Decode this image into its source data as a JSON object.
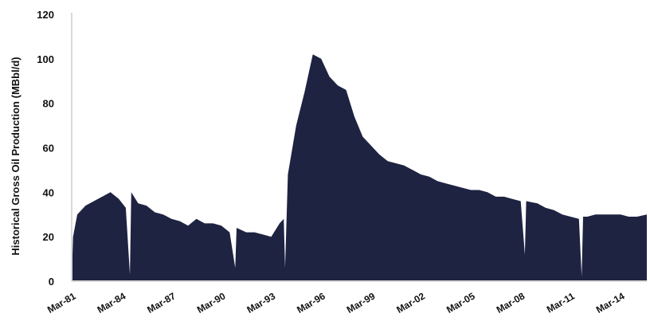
{
  "chart_data": {
    "type": "area",
    "title": "",
    "xlabel": "",
    "ylabel": "Historical Gross Oil Production (MBbl/d)",
    "ylim": [
      0,
      120
    ],
    "y_ticks": [
      "0",
      "20",
      "40",
      "60",
      "80",
      "100",
      "120"
    ],
    "x_tick_labels": [
      "Mar-81",
      "Mar-84",
      "Mar-87",
      "Mar-90",
      "Mar-93",
      "Mar-96",
      "Mar-99",
      "Mar-02",
      "Mar-05",
      "Mar-08",
      "Mar-11",
      "Mar-14"
    ],
    "x_range": [
      "Mar-81",
      "Oct-15"
    ],
    "grid": false,
    "fill_color": "#1f2342",
    "axis_color": "#d9d9d9",
    "series": [
      {
        "name": "",
        "points": [
          [
            "Mar-81",
            0
          ],
          [
            "Apr-81",
            20
          ],
          [
            "Jul-81",
            30
          ],
          [
            "Jan-82",
            34
          ],
          [
            "Jul-82",
            36
          ],
          [
            "Jan-83",
            38
          ],
          [
            "Jul-83",
            40
          ],
          [
            "Jan-84",
            37
          ],
          [
            "Jun-84",
            33
          ],
          [
            "Sep-84",
            3
          ],
          [
            "Oct-84",
            40
          ],
          [
            "Mar-85",
            35
          ],
          [
            "Sep-85",
            34
          ],
          [
            "Mar-86",
            31
          ],
          [
            "Sep-86",
            30
          ],
          [
            "Mar-87",
            28
          ],
          [
            "Sep-87",
            27
          ],
          [
            "Mar-88",
            25
          ],
          [
            "Sep-88",
            28
          ],
          [
            "Mar-89",
            26
          ],
          [
            "Sep-89",
            26
          ],
          [
            "Mar-90",
            25
          ],
          [
            "Sep-90",
            22
          ],
          [
            "Jan-91",
            6
          ],
          [
            "Feb-91",
            24
          ],
          [
            "Sep-91",
            22
          ],
          [
            "Mar-92",
            22
          ],
          [
            "Sep-92",
            21
          ],
          [
            "Mar-93",
            20
          ],
          [
            "Sep-93",
            26
          ],
          [
            "Dec-93",
            28
          ],
          [
            "Jan-94",
            6
          ],
          [
            "Mar-94",
            48
          ],
          [
            "Sep-94",
            70
          ],
          [
            "Mar-95",
            85
          ],
          [
            "Sep-95",
            102
          ],
          [
            "Mar-96",
            100
          ],
          [
            "Sep-96",
            92
          ],
          [
            "Mar-97",
            88
          ],
          [
            "Sep-97",
            86
          ],
          [
            "Mar-98",
            74
          ],
          [
            "Sep-98",
            65
          ],
          [
            "Mar-99",
            61
          ],
          [
            "Sep-99",
            57
          ],
          [
            "Mar-00",
            54
          ],
          [
            "Sep-00",
            53
          ],
          [
            "Mar-01",
            52
          ],
          [
            "Sep-01",
            50
          ],
          [
            "Mar-02",
            48
          ],
          [
            "Sep-02",
            47
          ],
          [
            "Mar-03",
            45
          ],
          [
            "Sep-03",
            44
          ],
          [
            "Mar-04",
            43
          ],
          [
            "Sep-04",
            42
          ],
          [
            "Mar-05",
            41
          ],
          [
            "Sep-05",
            41
          ],
          [
            "Mar-06",
            40
          ],
          [
            "Sep-06",
            38
          ],
          [
            "Mar-07",
            38
          ],
          [
            "Sep-07",
            37
          ],
          [
            "Mar-08",
            36
          ],
          [
            "Jun-08",
            12
          ],
          [
            "Jul-08",
            36
          ],
          [
            "Mar-09",
            35
          ],
          [
            "Sep-09",
            33
          ],
          [
            "Mar-10",
            32
          ],
          [
            "Sep-10",
            30
          ],
          [
            "Mar-11",
            29
          ],
          [
            "Sep-11",
            28
          ],
          [
            "Nov-11",
            2
          ],
          [
            "Dec-11",
            29
          ],
          [
            "Mar-12",
            29
          ],
          [
            "Sep-12",
            30
          ],
          [
            "Mar-13",
            30
          ],
          [
            "Sep-13",
            30
          ],
          [
            "Mar-14",
            30
          ],
          [
            "Sep-14",
            29
          ],
          [
            "Mar-15",
            29
          ],
          [
            "Oct-15",
            30
          ]
        ]
      }
    ]
  }
}
